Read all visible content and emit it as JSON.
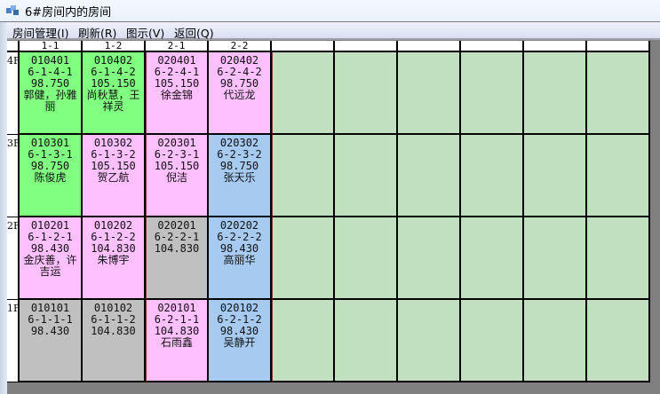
{
  "window": {
    "title": "6#房间内的房间",
    "icon": "app-icon"
  },
  "menu": [
    "房间管理(I)",
    "刷新(R)",
    "图示(V)",
    "返回(Q)"
  ],
  "colors": {
    "occupied_green": "#80ff80",
    "pink": "#ffc0ff",
    "blue": "#a6caf0",
    "gray": "#c0c0c0",
    "empty": "#c0e0c0"
  },
  "columns": [
    "1-1",
    "1-2",
    "2-1",
    "2-2",
    "",
    "",
    "",
    "",
    "",
    ""
  ],
  "floors": [
    {
      "label": "4F",
      "rooms": [
        {
          "code": "010401",
          "unit": "6-1-4-1",
          "area": "98.750",
          "names": "郭健，孙雅丽",
          "color": "occupied_green"
        },
        {
          "code": "010402",
          "unit": "6-1-4-2",
          "area": "105.150",
          "names": "尚秋慧，王祥灵",
          "color": "occupied_green"
        },
        {
          "code": "020401",
          "unit": "6-2-4-1",
          "area": "105.150",
          "names": "徐金锦",
          "color": "pink"
        },
        {
          "code": "020402",
          "unit": "6-2-4-2",
          "area": "98.750",
          "names": "代远龙",
          "color": "pink"
        }
      ]
    },
    {
      "label": "3F",
      "rooms": [
        {
          "code": "010301",
          "unit": "6-1-3-1",
          "area": "98.750",
          "names": "陈俊虎",
          "color": "occupied_green"
        },
        {
          "code": "010302",
          "unit": "6-1-3-2",
          "area": "105.150",
          "names": "贺乙航",
          "color": "pink"
        },
        {
          "code": "020301",
          "unit": "6-2-3-1",
          "area": "105.150",
          "names": "倪洁",
          "color": "pink"
        },
        {
          "code": "020302",
          "unit": "6-2-3-2",
          "area": "98.750",
          "names": "张天乐",
          "color": "blue"
        }
      ]
    },
    {
      "label": "2F",
      "rooms": [
        {
          "code": "010201",
          "unit": "6-1-2-1",
          "area": "98.430",
          "names": "金庆善，许吉运",
          "color": "pink"
        },
        {
          "code": "010202",
          "unit": "6-1-2-2",
          "area": "104.830",
          "names": "朱博宇",
          "color": "pink"
        },
        {
          "code": "020201",
          "unit": "6-2-2-1",
          "area": "104.830",
          "names": "",
          "color": "gray"
        },
        {
          "code": "020202",
          "unit": "6-2-2-2",
          "area": "98.430",
          "names": "高丽华",
          "color": "blue"
        }
      ]
    },
    {
      "label": "1F",
      "rooms": [
        {
          "code": "010101",
          "unit": "6-1-1-1",
          "area": "98.430",
          "names": "",
          "color": "gray"
        },
        {
          "code": "010102",
          "unit": "6-1-1-2",
          "area": "104.830",
          "names": "",
          "color": "gray"
        },
        {
          "code": "020101",
          "unit": "6-2-1-1",
          "area": "104.830",
          "names": "石雨鑫",
          "color": "pink"
        },
        {
          "code": "020102",
          "unit": "6-2-1-2",
          "area": "98.430",
          "names": "吴静开",
          "color": "blue"
        }
      ]
    }
  ]
}
